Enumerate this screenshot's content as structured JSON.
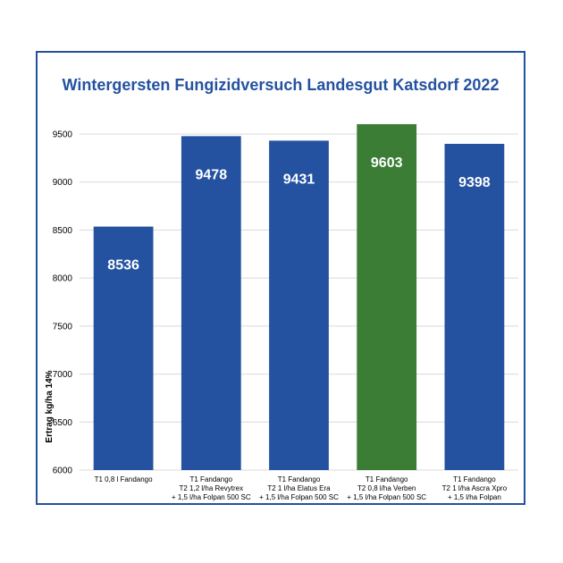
{
  "chart_data": {
    "type": "bar",
    "title": "Wintergersten Fungizidversuch Landesgut Katsdorf 2022",
    "ylabel": "Ertrag kg/ha 14%",
    "xlabel": "",
    "ylim": [
      6000,
      9500
    ],
    "yticks": [
      6000,
      6500,
      7000,
      7500,
      8000,
      8500,
      9000,
      9500
    ],
    "grid": true,
    "categories": [
      [
        "T1 0,8 l Fandango"
      ],
      [
        "T1 Fandango",
        "T2 1,2 l/ha Revytrex",
        "+ 1,5 l/ha Folpan 500 SC"
      ],
      [
        "T1 Fandango",
        "T2 1 l/ha Elatus Era",
        "+ 1,5 l/ha Folpan 500 SC"
      ],
      [
        "T1 Fandango",
        "T2 0,8 l/ha Verben",
        "+ 1,5 l/ha Folpan 500 SC"
      ],
      [
        "T1 Fandango",
        "T2 1 l/ha Ascra Xpro",
        "+ 1,5 l/ha Folpan"
      ]
    ],
    "values": [
      8536,
      9478,
      9431,
      9603,
      9398
    ],
    "colors": [
      "#2452a0",
      "#2452a0",
      "#2452a0",
      "#3b7d35",
      "#2452a0"
    ],
    "frame_color": "#2452a0"
  }
}
